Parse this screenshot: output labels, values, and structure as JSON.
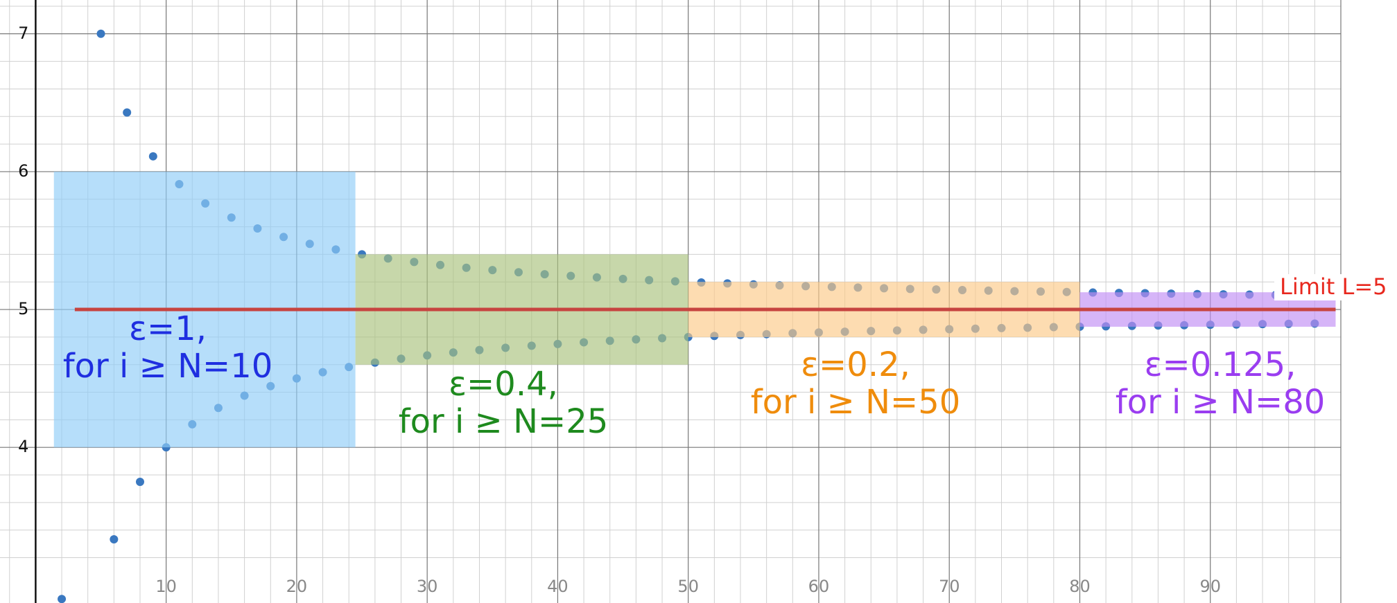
{
  "chart_data": {
    "type": "scatter",
    "xlim": [
      -2.73,
      100
    ],
    "ylim": [
      2.871,
      7.245
    ],
    "xticks": [
      10,
      20,
      30,
      40,
      50,
      60,
      70,
      80,
      90
    ],
    "yticks": [
      4,
      5,
      6,
      7
    ],
    "grid": {
      "major_x": 10,
      "minor_x": 2,
      "major_y": 1,
      "minor_y": 0.2
    },
    "point_color": "#3a78c0",
    "x": [
      2,
      5,
      6,
      7,
      8,
      9,
      10,
      11,
      12,
      13,
      14,
      15,
      16,
      17,
      18,
      19,
      20,
      21,
      22,
      23,
      24,
      25,
      26,
      27,
      28,
      29,
      30,
      31,
      32,
      33,
      34,
      35,
      36,
      37,
      38,
      39,
      40,
      41,
      42,
      43,
      44,
      45,
      46,
      47,
      48,
      49,
      50,
      51,
      52,
      53,
      54,
      55,
      56,
      57,
      58,
      59,
      60,
      61,
      62,
      63,
      64,
      65,
      66,
      67,
      68,
      69,
      70,
      71,
      72,
      73,
      74,
      75,
      76,
      77,
      78,
      79,
      80,
      81,
      82,
      83,
      84,
      85,
      86,
      87,
      88,
      89,
      90,
      91,
      92,
      93,
      94,
      95,
      96,
      97,
      98,
      99
    ],
    "values": [
      2.9,
      7,
      3.333,
      6.429,
      3.75,
      6.111,
      4,
      5.909,
      4.167,
      5.769,
      4.286,
      5.667,
      4.375,
      5.588,
      4.444,
      5.526,
      4.5,
      5.476,
      4.545,
      5.435,
      4.583,
      5.4,
      4.615,
      5.37,
      4.643,
      5.345,
      4.667,
      5.323,
      4.688,
      5.303,
      4.706,
      5.286,
      4.722,
      5.27,
      4.737,
      5.256,
      4.75,
      5.244,
      4.762,
      5.233,
      4.773,
      5.222,
      4.783,
      5.213,
      4.792,
      5.204,
      4.8,
      5.196,
      4.808,
      5.189,
      4.815,
      5.182,
      4.821,
      5.175,
      4.828,
      5.169,
      4.833,
      5.164,
      4.839,
      5.159,
      4.844,
      5.154,
      4.848,
      5.149,
      4.853,
      5.145,
      4.857,
      5.141,
      4.861,
      5.137,
      4.865,
      5.133,
      4.868,
      5.13,
      4.872,
      5.127,
      4.875,
      5.123,
      4.878,
      5.12,
      4.881,
      5.118,
      4.884,
      5.115,
      4.886,
      5.112,
      4.889,
      5.11,
      4.891,
      5.108,
      4.894,
      5.105,
      4.896,
      5.103,
      4.898,
      5.101
    ],
    "limit": {
      "value": 5,
      "x": [
        3,
        99.6
      ],
      "color": "#c74440",
      "label": "Limit L=5",
      "label_color": "#e8281e"
    },
    "regions": [
      {
        "x": [
          1.4,
          24.5
        ],
        "y": [
          4,
          6
        ],
        "color": "#8fcdf7",
        "label_color": "#1f2fe0",
        "lines": [
          "ε=1,",
          "for i ≥ N=10"
        ]
      },
      {
        "x": [
          24.5,
          50
        ],
        "y": [
          4.6,
          5.4
        ],
        "color": "#a9c27c",
        "label_color": "#1e8a1e",
        "lines": [
          "ε=0.4,",
          "for i ≥ N=25"
        ]
      },
      {
        "x": [
          50,
          80
        ],
        "y": [
          4.8,
          5.2
        ],
        "color": "#fcc987",
        "label_color": "#ef8c0c",
        "lines": [
          "ε=0.2,",
          "for i ≥ N=50"
        ]
      },
      {
        "x": [
          80,
          99.6
        ],
        "y": [
          4.875,
          5.125
        ],
        "color": "#c08df4",
        "label_color": "#9a3df0",
        "lines": [
          "ε=0.125,",
          "for i ≥ N=80"
        ]
      }
    ]
  }
}
